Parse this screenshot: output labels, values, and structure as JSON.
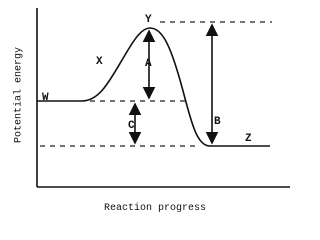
{
  "axes": {
    "y_label": "Potential energy",
    "x_label": "Reaction progress"
  },
  "points": {
    "w": "W",
    "x": "X",
    "y": "Y",
    "z": "Z"
  },
  "arrows": {
    "a": "A",
    "b": "B",
    "c": "C"
  }
}
